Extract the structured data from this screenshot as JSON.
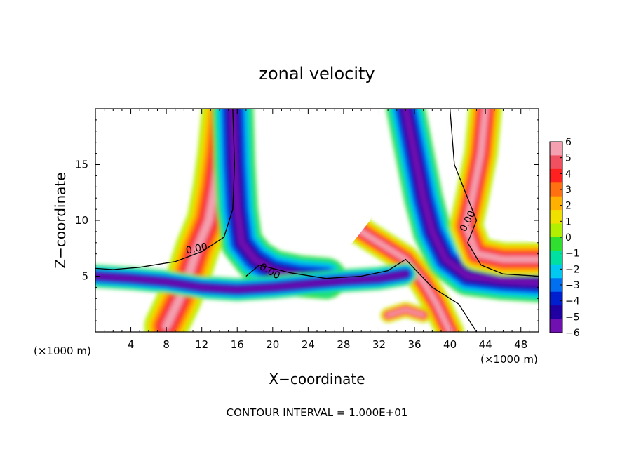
{
  "chart_data": {
    "type": "heatmap",
    "title": "zonal velocity",
    "xlabel": "X−coordinate",
    "ylabel": "Z−coordinate",
    "x_unit_left": "(×1000 m)",
    "x_unit_right": "(×1000 m)",
    "footer": "CONTOUR INTERVAL = 1.000E+01",
    "xlim": [
      0,
      50
    ],
    "ylim": [
      0,
      20
    ],
    "x_ticks": [
      4,
      8,
      12,
      16,
      20,
      24,
      28,
      32,
      36,
      40,
      44,
      48
    ],
    "x_tick_labels": [
      "4",
      "8",
      "12",
      "16",
      "20",
      "24",
      "28",
      "32",
      "36",
      "40",
      "44",
      "48"
    ],
    "y_ticks": [
      5,
      10,
      15
    ],
    "y_tick_labels": [
      "5",
      "10",
      "15"
    ],
    "contour_labels": [
      "0.00",
      "0.00",
      "0.00"
    ],
    "colorbar": {
      "min": -6,
      "max": 6,
      "tick_values": [
        6,
        5,
        4,
        3,
        2,
        1,
        0,
        -1,
        -2,
        -3,
        -4,
        -5,
        -6
      ],
      "tick_labels": [
        "6",
        "5",
        "4",
        "3",
        "2",
        "1",
        "0",
        "−1",
        "−2",
        "−3",
        "−4",
        "−5",
        "−6"
      ],
      "colors": [
        "#f4a0b0",
        "#f05060",
        "#ff2020",
        "#ff7010",
        "#ffb000",
        "#f0e000",
        "#b0f000",
        "#30e030",
        "#00e0a0",
        "#00c8f0",
        "#0070f0",
        "#0020d0",
        "#2000a0",
        "#7010b0"
      ]
    },
    "features": [
      {
        "name": "positive-jet-west",
        "path": [
          [
            8,
            0.5
          ],
          [
            9.5,
            3
          ],
          [
            10.5,
            5
          ],
          [
            11.5,
            7.5
          ],
          [
            12.8,
            10
          ],
          [
            13.5,
            13
          ],
          [
            14,
            16
          ],
          [
            14.5,
            20
          ]
        ],
        "width": 3.2,
        "sign": "pos"
      },
      {
        "name": "negative-jet-left",
        "path": [
          [
            15.5,
            20
          ],
          [
            15.7,
            15
          ],
          [
            16,
            11
          ],
          [
            16.5,
            8
          ],
          [
            18,
            6.5
          ],
          [
            20,
            5.5
          ],
          [
            23,
            5
          ],
          [
            26,
            4.8
          ]
        ],
        "width": 3.0,
        "sign": "neg"
      },
      {
        "name": "positive-jet-east",
        "path": [
          [
            40,
            0
          ],
          [
            38.5,
            2.5
          ],
          [
            37,
            4.5
          ],
          [
            35,
            6.5
          ],
          [
            33,
            7.5
          ],
          [
            30,
            9
          ],
          [
            28,
            11
          ]
        ],
        "width": 2.0,
        "sign": "pos"
      },
      {
        "name": "negative-jet-east",
        "path": [
          [
            35,
            20
          ],
          [
            36,
            16
          ],
          [
            37,
            12
          ],
          [
            38,
            9
          ],
          [
            39.5,
            6.5
          ],
          [
            42,
            5
          ],
          [
            46,
            4.6
          ],
          [
            50,
            4.4
          ]
        ],
        "width": 2.8,
        "sign": "neg"
      },
      {
        "name": "positive-jet-far-east",
        "path": [
          [
            44,
            20
          ],
          [
            43.5,
            16
          ],
          [
            42.5,
            12
          ],
          [
            41.8,
            9.5
          ],
          [
            43,
            7
          ],
          [
            46,
            6.5
          ],
          [
            50,
            6.5
          ]
        ],
        "width": 2.4,
        "sign": "pos"
      },
      {
        "name": "lower-shear-band",
        "path": [
          [
            0,
            5
          ],
          [
            4,
            4.8
          ],
          [
            8,
            4.5
          ],
          [
            12,
            4
          ],
          [
            16,
            3.8
          ],
          [
            20,
            4
          ],
          [
            24,
            4.3
          ],
          [
            28,
            4.6
          ],
          [
            32,
            4.8
          ],
          [
            35,
            5.2
          ]
        ],
        "width": 1.6,
        "sign": "neg"
      },
      {
        "name": "near-surface-cell",
        "path": [
          [
            33,
            1.5
          ],
          [
            35,
            2
          ],
          [
            37,
            1.5
          ]
        ],
        "width": 1.0,
        "sign": "pos"
      }
    ],
    "zero_contours": [
      {
        "name": "zero-contour-west",
        "path": [
          [
            15.5,
            20
          ],
          [
            15.7,
            15
          ],
          [
            15.5,
            11
          ],
          [
            14.5,
            8.5
          ],
          [
            12,
            7.2
          ],
          [
            9,
            6.3
          ],
          [
            5,
            5.8
          ],
          [
            2,
            5.6
          ],
          [
            0,
            5.7
          ]
        ]
      },
      {
        "name": "zero-contour-lower",
        "path": [
          [
            17,
            5
          ],
          [
            18.5,
            6
          ],
          [
            22,
            5.3
          ],
          [
            26,
            4.8
          ],
          [
            30,
            5
          ],
          [
            33,
            5.5
          ],
          [
            35,
            6.5
          ],
          [
            38,
            4
          ],
          [
            41,
            2.5
          ],
          [
            43,
            0
          ]
        ]
      },
      {
        "name": "zero-contour-east",
        "path": [
          [
            40,
            20
          ],
          [
            40.5,
            15
          ],
          [
            42,
            12
          ],
          [
            43,
            10
          ],
          [
            42,
            8
          ],
          [
            43.5,
            6
          ],
          [
            46,
            5.2
          ],
          [
            50,
            5
          ]
        ]
      }
    ],
    "white_regions": [
      {
        "name": "calm-region-upper-left",
        "path": [
          [
            0,
            20
          ],
          [
            9,
            20
          ],
          [
            10,
            15
          ],
          [
            10.5,
            12
          ],
          [
            9,
            10
          ],
          [
            6,
            8.5
          ],
          [
            0,
            8.5
          ]
        ]
      },
      {
        "name": "calm-region-center",
        "path": [
          [
            22,
            18
          ],
          [
            26,
            17
          ],
          [
            31,
            16
          ],
          [
            32,
            13
          ],
          [
            31,
            10
          ],
          [
            29,
            8
          ],
          [
            26,
            7
          ],
          [
            23,
            7.5
          ],
          [
            21,
            9
          ],
          [
            20,
            12
          ],
          [
            21,
            15
          ]
        ]
      },
      {
        "name": "calm-region-lower-right",
        "path": [
          [
            45,
            0
          ],
          [
            47,
            2
          ],
          [
            50,
            2.5
          ],
          [
            50,
            0
          ]
        ]
      },
      {
        "name": "calm-region-upper-right",
        "path": [
          [
            46,
            20
          ],
          [
            50,
            20
          ],
          [
            50,
            8
          ],
          [
            47,
            8.5
          ],
          [
            46,
            12
          ]
        ]
      }
    ]
  }
}
